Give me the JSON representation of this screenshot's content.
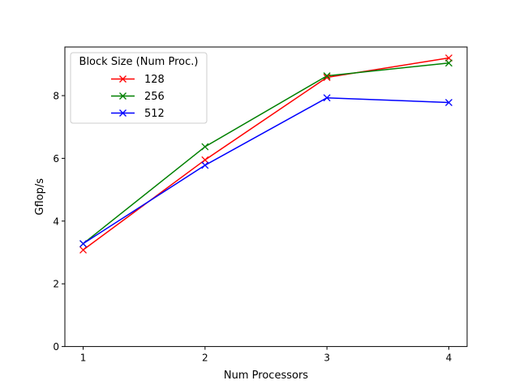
{
  "chart_data": {
    "type": "line",
    "title": "",
    "xlabel": "Num Processors",
    "ylabel": "Gflop/s",
    "x": [
      1,
      2,
      3,
      4
    ],
    "xticks": [
      "1",
      "2",
      "3",
      "4"
    ],
    "yticks": [
      "0",
      "2",
      "4",
      "6",
      "8"
    ],
    "xlim": [
      0.85,
      4.15
    ],
    "ylim": [
      0,
      9.55
    ],
    "grid": false,
    "marker": "x",
    "legend": {
      "title": "Block Size (Num Proc.)",
      "placement": "top-left"
    },
    "series": [
      {
        "name": "128",
        "color": "#ff0000",
        "values": [
          3.08,
          5.95,
          8.58,
          9.2
        ]
      },
      {
        "name": "256",
        "color": "#008000",
        "values": [
          3.28,
          6.37,
          8.63,
          9.04
        ]
      },
      {
        "name": "512",
        "color": "#0000ff",
        "values": [
          3.28,
          5.78,
          7.93,
          7.78
        ]
      }
    ]
  }
}
